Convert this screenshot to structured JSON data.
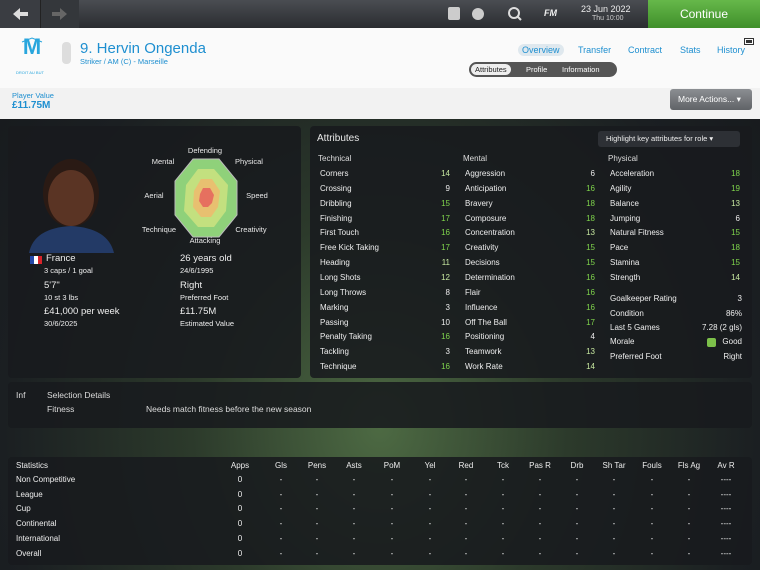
{
  "topbar": {
    "fm": "FM",
    "date": "23 Jun 2022",
    "time": "Thu 10:00",
    "continue": "Continue"
  },
  "header": {
    "club_motto": "DROIT AU BUT",
    "player_name": "9. Hervin Ongenda",
    "position": "Striker / AM (C) - Marseille",
    "tabs": [
      "Overview",
      "Transfer",
      "Contract",
      "Stats",
      "History"
    ],
    "subtabs": [
      "Attributes",
      "Profile",
      "Information"
    ]
  },
  "value_bar": {
    "label": "Player Value",
    "value": "£11.75M",
    "more_actions": "More Actions..."
  },
  "profile": {
    "radar_labels": [
      "Defending",
      "Physical",
      "Speed",
      "Creativity",
      "Attacking",
      "Technique",
      "Aerial",
      "Mental"
    ],
    "left": [
      "France",
      "3 caps / 1 goal",
      "5'7\"",
      "10 st 3 lbs",
      "£41,000 per week",
      "30/6/2025"
    ],
    "right": [
      "26 years old",
      "24/6/1995",
      "Right",
      "Preferred Foot",
      "£11.75M",
      "Estimated Value"
    ]
  },
  "attributes": {
    "title": "Attributes",
    "highlight": "Highlight key attributes for role",
    "columns": [
      {
        "heading": "Technical",
        "items": [
          {
            "name": "Corners",
            "value": 14
          },
          {
            "name": "Crossing",
            "value": 9
          },
          {
            "name": "Dribbling",
            "value": 15
          },
          {
            "name": "Finishing",
            "value": 17
          },
          {
            "name": "First Touch",
            "value": 16
          },
          {
            "name": "Free Kick Taking",
            "value": 17
          },
          {
            "name": "Heading",
            "value": 11
          },
          {
            "name": "Long Shots",
            "value": 12
          },
          {
            "name": "Long Throws",
            "value": 8
          },
          {
            "name": "Marking",
            "value": 3
          },
          {
            "name": "Passing",
            "value": 10
          },
          {
            "name": "Penalty Taking",
            "value": 16
          },
          {
            "name": "Tackling",
            "value": 3
          },
          {
            "name": "Technique",
            "value": 16
          }
        ]
      },
      {
        "heading": "Mental",
        "items": [
          {
            "name": "Aggression",
            "value": 6
          },
          {
            "name": "Anticipation",
            "value": 16
          },
          {
            "name": "Bravery",
            "value": 18
          },
          {
            "name": "Composure",
            "value": 18
          },
          {
            "name": "Concentration",
            "value": 13
          },
          {
            "name": "Creativity",
            "value": 15
          },
          {
            "name": "Decisions",
            "value": 15
          },
          {
            "name": "Determination",
            "value": 16
          },
          {
            "name": "Flair",
            "value": 16
          },
          {
            "name": "Influence",
            "value": 16
          },
          {
            "name": "Off The Ball",
            "value": 17
          },
          {
            "name": "Positioning",
            "value": 4
          },
          {
            "name": "Teamwork",
            "value": 13
          },
          {
            "name": "Work Rate",
            "value": 14
          }
        ]
      },
      {
        "heading": "Physical",
        "items": [
          {
            "name": "Acceleration",
            "value": 18
          },
          {
            "name": "Agility",
            "value": 19
          },
          {
            "name": "Balance",
            "value": 13
          },
          {
            "name": "Jumping",
            "value": 6
          },
          {
            "name": "Natural Fitness",
            "value": 15
          },
          {
            "name": "Pace",
            "value": 18
          },
          {
            "name": "Stamina",
            "value": 15
          },
          {
            "name": "Strength",
            "value": 14
          }
        ]
      }
    ],
    "summary": [
      {
        "label": "Goalkeeper Rating",
        "value": 3
      },
      {
        "label": "Condition",
        "value": "86%"
      },
      {
        "label": "Last 5 Games",
        "value": "7.28 (2 gls)"
      },
      {
        "label": "Morale",
        "value": "Good"
      },
      {
        "label": "Preferred Foot",
        "value": "Right"
      }
    ]
  },
  "selection": {
    "inf": "Inf",
    "heading": "Selection Details",
    "label": "Fitness",
    "text": "Needs match fitness before the new season"
  },
  "statistics": {
    "headers": [
      "Statistics",
      "Apps",
      "Gls",
      "Pens",
      "Asts",
      "PoM",
      "Yel",
      "Red",
      "Tck",
      "Pas R",
      "Drb",
      "Sh Tar",
      "Fouls",
      "Fls Ag",
      "Av R"
    ],
    "rows": [
      {
        "label": "Non Competitive",
        "cells": [
          0,
          "-",
          "-",
          "-",
          "-",
          "-",
          "-",
          "-",
          "-",
          "-",
          "-",
          "-",
          "-",
          "----"
        ]
      },
      {
        "label": "League",
        "cells": [
          0,
          "-",
          "-",
          "-",
          "-",
          "-",
          "-",
          "-",
          "-",
          "-",
          "-",
          "-",
          "-",
          "----"
        ]
      },
      {
        "label": "Cup",
        "cells": [
          0,
          "-",
          "-",
          "-",
          "-",
          "-",
          "-",
          "-",
          "-",
          "-",
          "-",
          "-",
          "-",
          "----"
        ]
      },
      {
        "label": "Continental",
        "cells": [
          0,
          "-",
          "-",
          "-",
          "-",
          "-",
          "-",
          "-",
          "-",
          "-",
          "-",
          "-",
          "-",
          "----"
        ]
      },
      {
        "label": "International",
        "cells": [
          0,
          "-",
          "-",
          "-",
          "-",
          "-",
          "-",
          "-",
          "-",
          "-",
          "-",
          "-",
          "-",
          "----"
        ]
      },
      {
        "label": "Overall",
        "cells": [
          0,
          "-",
          "-",
          "-",
          "-",
          "-",
          "-",
          "-",
          "-",
          "-",
          "-",
          "-",
          "-",
          "----"
        ]
      }
    ]
  }
}
